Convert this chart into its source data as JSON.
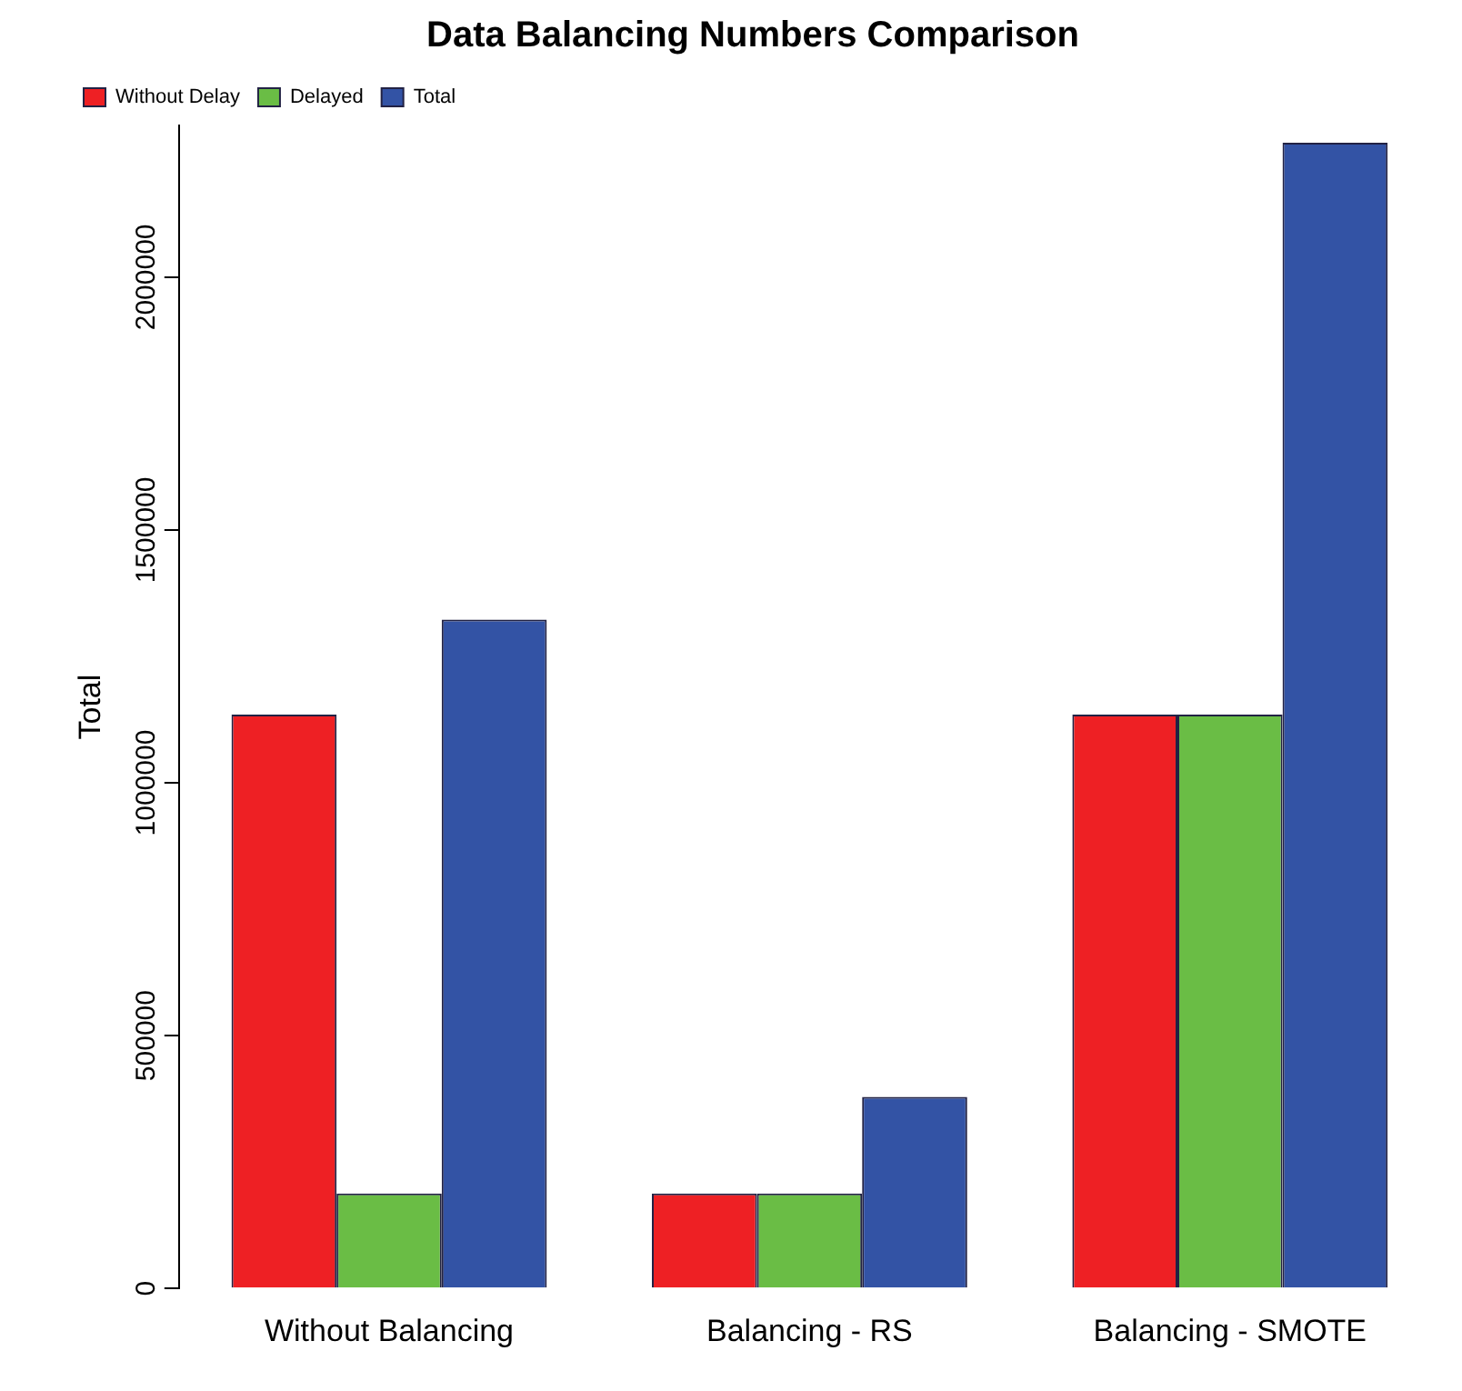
{
  "chart_data": {
    "type": "bar",
    "title": "Data Balancing Numbers Comparison",
    "ylabel": "Total",
    "categories": [
      "Without Balancing",
      "Balancing - RS",
      "Balancing - SMOTE"
    ],
    "series": [
      {
        "name": "Without Delay",
        "color": "#ee2024",
        "values": [
          1135000,
          188000,
          1135000
        ]
      },
      {
        "name": "Delayed",
        "color": "#6abd45",
        "values": [
          188000,
          188000,
          1135000
        ]
      },
      {
        "name": "Total",
        "color": "#3353a5",
        "values": [
          1323000,
          379000,
          2266000
        ]
      }
    ],
    "ylim": [
      0,
      2300000
    ],
    "yticks": [
      0,
      500000,
      1000000,
      1500000,
      2000000
    ],
    "grid": false,
    "legend": "top left"
  }
}
